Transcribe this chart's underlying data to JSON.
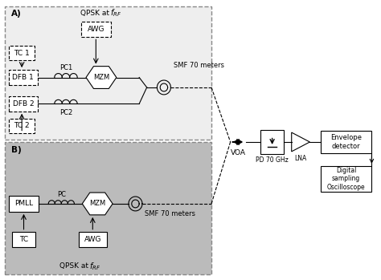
{
  "fig_width": 4.74,
  "fig_height": 3.49,
  "bg_color": "#ffffff",
  "panel_A_bg": "#eeeeee",
  "panel_B_bg": "#bbbbbb",
  "panel_A_label": "A)",
  "panel_B_label": "B)",
  "pc1_label": "PC1",
  "pc2_label": "PC2",
  "pc_label": "PC",
  "smf_label_A": "SMF 70 meters",
  "smf_label_B": "SMF 70 meters"
}
